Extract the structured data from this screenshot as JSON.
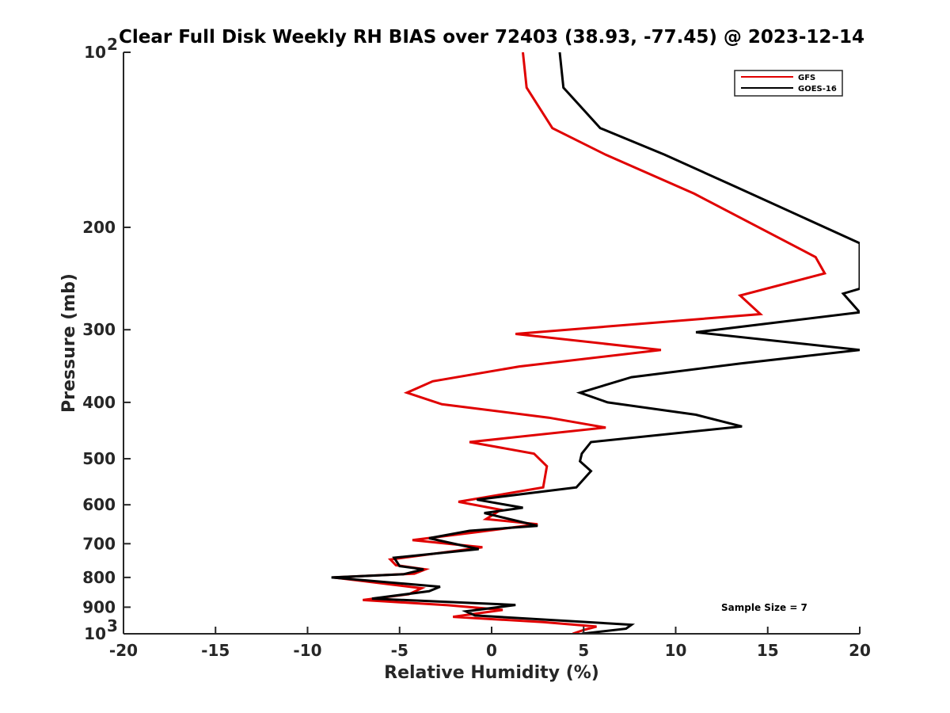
{
  "chart_data": {
    "type": "line",
    "title": "Clear Full Disk Weekly RH BIAS over 72403 (38.93, -77.45) @ 2023-12-14",
    "xlabel": "Relative Humidity (%)",
    "ylabel": "Pressure (mb)",
    "xlim": [
      -20,
      20
    ],
    "ylim": [
      1000,
      100
    ],
    "yscale": "log",
    "y_reversed": true,
    "grid": false,
    "x_ticks": [
      "-20",
      "-15",
      "-10",
      "-5",
      "0",
      "5",
      "10",
      "15",
      "20"
    ],
    "y_ticks": [
      {
        "value": 100,
        "base": "10",
        "exp": "2"
      },
      {
        "value": 200,
        "label": "200"
      },
      {
        "value": 300,
        "label": "300"
      },
      {
        "value": 400,
        "label": "400"
      },
      {
        "value": 500,
        "label": "500"
      },
      {
        "value": 600,
        "label": "600"
      },
      {
        "value": 700,
        "label": "700"
      },
      {
        "value": 800,
        "label": "800"
      },
      {
        "value": 900,
        "label": "900"
      },
      {
        "value": 1000,
        "base": "10",
        "exp": "3"
      }
    ],
    "legend_position": "top-right",
    "annotation": "Sample Size = 7",
    "series": [
      {
        "name": "GFS",
        "color": "#e00000",
        "points": [
          [
            1.7,
            100
          ],
          [
            1.9,
            115
          ],
          [
            3.3,
            135
          ],
          [
            6.2,
            150
          ],
          [
            11.0,
            175
          ],
          [
            17.6,
            225
          ],
          [
            18.1,
            240
          ],
          [
            13.5,
            262
          ],
          [
            14.6,
            282
          ],
          [
            1.3,
            305
          ],
          [
            9.2,
            325
          ],
          [
            1.5,
            347
          ],
          [
            -3.2,
            368
          ],
          [
            -4.6,
            385
          ],
          [
            -2.7,
            403
          ],
          [
            3.1,
            425
          ],
          [
            6.2,
            442
          ],
          [
            -1.2,
            468
          ],
          [
            2.3,
            490
          ],
          [
            3.0,
            515
          ],
          [
            2.8,
            560
          ],
          [
            -1.8,
            593
          ],
          [
            0.5,
            612
          ],
          [
            -0.3,
            635
          ],
          [
            2.5,
            648
          ],
          [
            -0.7,
            668
          ],
          [
            -4.3,
            690
          ],
          [
            -0.5,
            710
          ],
          [
            -5.5,
            745
          ],
          [
            -5.2,
            762
          ],
          [
            -3.6,
            775
          ],
          [
            -4.2,
            788
          ],
          [
            -8.6,
            800
          ],
          [
            -3.8,
            835
          ],
          [
            -4.5,
            855
          ],
          [
            -7.0,
            875
          ],
          [
            -2.4,
            893
          ],
          [
            0.6,
            910
          ],
          [
            -2.1,
            935
          ],
          [
            2.8,
            955
          ],
          [
            5.7,
            972
          ],
          [
            5.0,
            985
          ],
          [
            4.4,
            1000
          ]
        ]
      },
      {
        "name": "GOES-16",
        "color": "#000000",
        "points": [
          [
            3.7,
            100
          ],
          [
            3.9,
            115
          ],
          [
            5.9,
            135
          ],
          [
            9.4,
            150
          ],
          [
            13.2,
            170
          ],
          [
            20.0,
            213
          ],
          [
            20.0,
            255
          ],
          [
            19.1,
            260
          ],
          [
            20.0,
            280
          ],
          [
            11.1,
            303
          ],
          [
            20.0,
            325
          ],
          [
            13.5,
            343
          ],
          [
            7.6,
            362
          ],
          [
            4.8,
            385
          ],
          [
            6.3,
            400
          ],
          [
            11.1,
            420
          ],
          [
            13.6,
            440
          ],
          [
            5.4,
            468
          ],
          [
            4.9,
            490
          ],
          [
            4.8,
            505
          ],
          [
            5.4,
            525
          ],
          [
            4.6,
            560
          ],
          [
            -0.8,
            588
          ],
          [
            1.7,
            607
          ],
          [
            -0.4,
            620
          ],
          [
            2.5,
            652
          ],
          [
            -1.2,
            665
          ],
          [
            -3.4,
            685
          ],
          [
            -0.7,
            715
          ],
          [
            -5.3,
            740
          ],
          [
            -5.0,
            765
          ],
          [
            -3.7,
            775
          ],
          [
            -4.8,
            790
          ],
          [
            -8.7,
            800
          ],
          [
            -2.8,
            830
          ],
          [
            -3.4,
            845
          ],
          [
            -6.5,
            870
          ],
          [
            1.3,
            892
          ],
          [
            -1.4,
            915
          ],
          [
            -0.9,
            930
          ],
          [
            7.6,
            965
          ],
          [
            7.3,
            980
          ],
          [
            4.9,
            1000
          ]
        ]
      }
    ]
  }
}
